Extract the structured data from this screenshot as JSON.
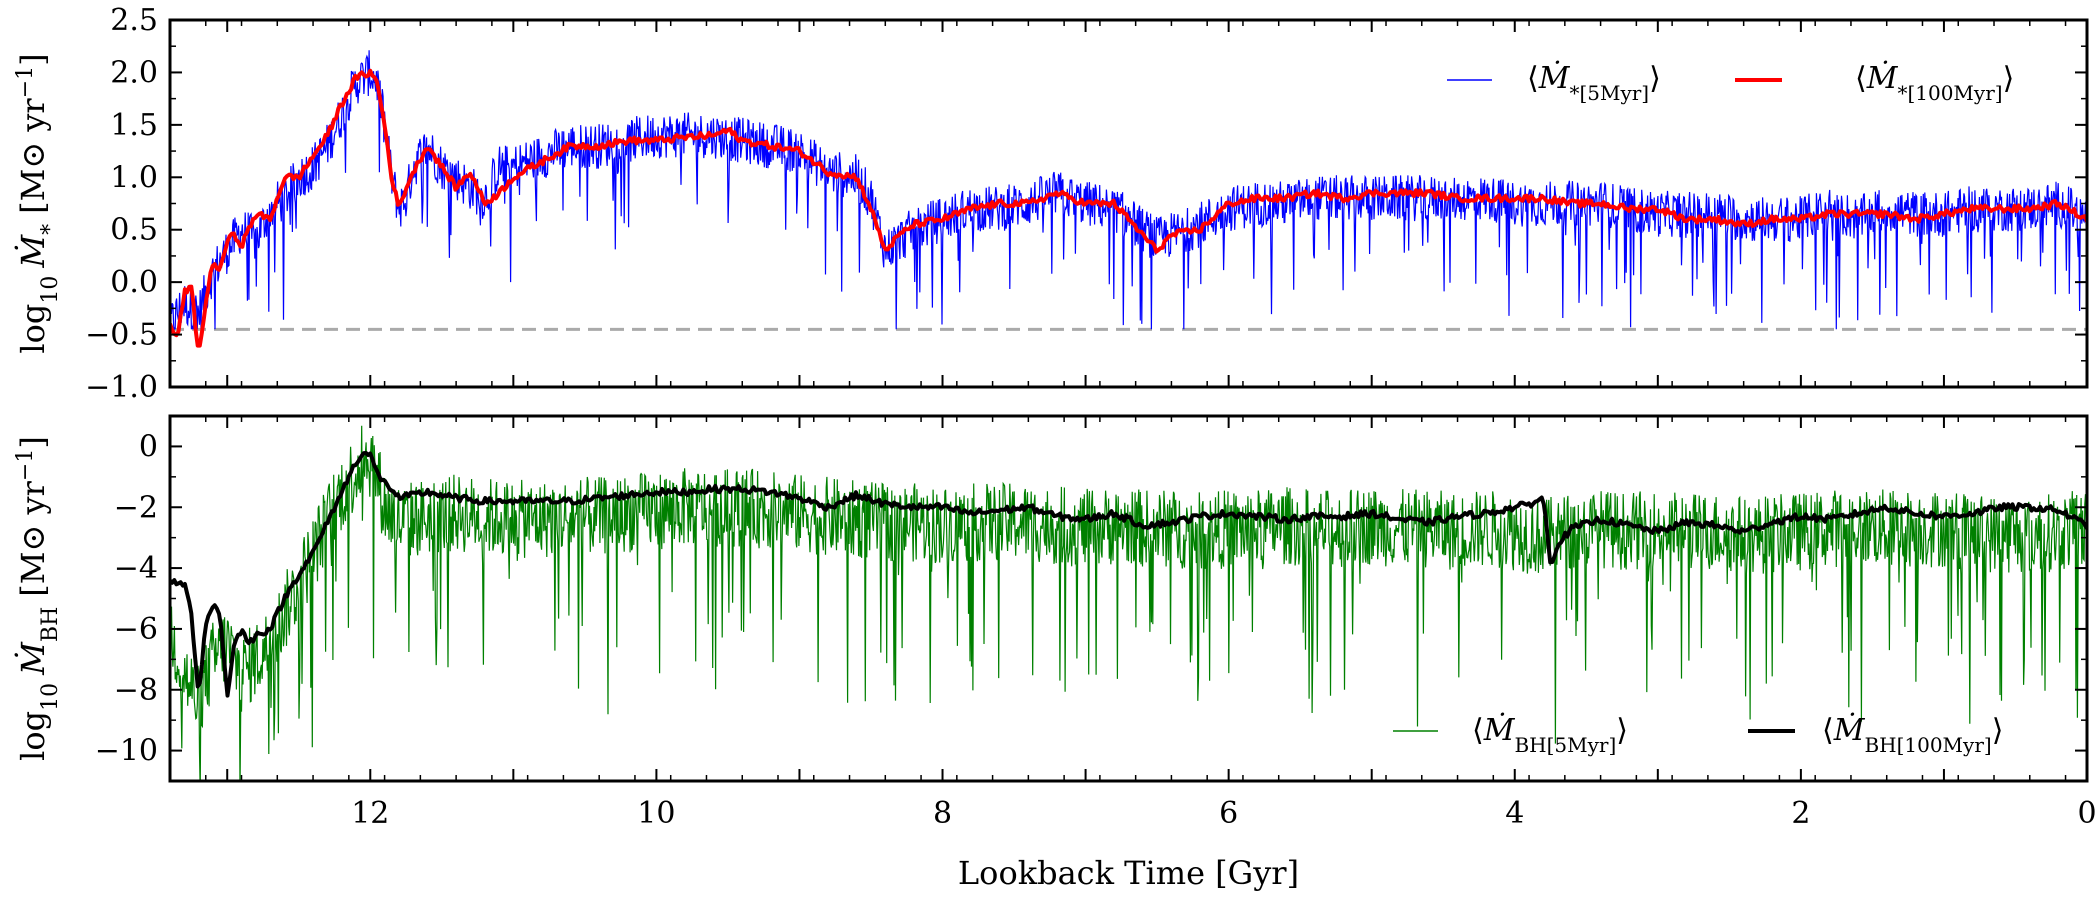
{
  "chart_data": [
    {
      "type": "line",
      "panel": "top",
      "ylabel": "log10 Ṁ* [M⊙ yr⁻¹]",
      "ylabel_parts": {
        "pre": "log",
        "sub": "10",
        "sym": "Ṁ",
        "symsub": "*",
        "unit": "[M⊙ yr",
        "exp": "−1",
        "close": "]"
      },
      "ylim": [
        -1.0,
        2.5
      ],
      "xlim": [
        13.4,
        0
      ],
      "yticks": [
        -1.0,
        -0.5,
        0.0,
        0.5,
        1.0,
        1.5,
        2.0,
        2.5
      ],
      "ytick_labels": [
        "−1.0",
        "−0.5",
        "0.0",
        "0.5",
        "1.0",
        "1.5",
        "2.0",
        "2.5"
      ],
      "floor_line": {
        "y": -0.45,
        "color": "#aaaaaa",
        "style": "dashed"
      },
      "legend_position": "top-right",
      "series": [
        {
          "name": "⟨Ṁ*[5Myr]⟩",
          "label_parts": {
            "base": "Ṁ",
            "sub": "*[5Myr]"
          },
          "color": "#0000ff",
          "kind": "noisy",
          "noise_amplitude": 0.22,
          "floor": -0.45,
          "x": [
            13.4,
            13.3,
            13.2,
            13.1,
            13.0,
            12.9,
            12.8,
            12.7,
            12.6,
            12.5,
            12.4,
            12.3,
            12.2,
            12.1,
            12.0,
            11.95,
            11.9,
            11.85,
            11.8,
            11.75,
            11.7,
            11.6,
            11.5,
            11.4,
            11.3,
            11.2,
            11.1,
            11.0,
            10.8,
            10.6,
            10.4,
            10.2,
            10.0,
            9.8,
            9.6,
            9.4,
            9.2,
            9.0,
            8.8,
            8.6,
            8.5,
            8.4,
            8.3,
            8.2,
            8.0,
            7.8,
            7.6,
            7.4,
            7.2,
            7.0,
            6.8,
            6.6,
            6.5,
            6.4,
            6.2,
            6.0,
            5.8,
            5.6,
            5.4,
            5.2,
            5.0,
            4.8,
            4.6,
            4.4,
            4.2,
            4.0,
            3.8,
            3.6,
            3.4,
            3.2,
            3.0,
            2.8,
            2.6,
            2.4,
            2.2,
            2.0,
            1.8,
            1.6,
            1.4,
            1.2,
            1.0,
            0.8,
            0.6,
            0.4,
            0.2,
            0.0
          ],
          "y": [
            -0.4,
            -0.2,
            -0.3,
            0.1,
            0.3,
            0.5,
            0.4,
            0.7,
            0.8,
            1.0,
            1.1,
            1.3,
            1.6,
            1.9,
            2.0,
            1.9,
            1.5,
            1.0,
            0.7,
            0.8,
            1.1,
            1.3,
            1.1,
            1.0,
            0.9,
            0.8,
            1.1,
            1.1,
            1.2,
            1.3,
            1.3,
            1.35,
            1.4,
            1.4,
            1.4,
            1.35,
            1.3,
            1.25,
            1.05,
            1.0,
            0.8,
            0.3,
            0.4,
            0.5,
            0.6,
            0.7,
            0.7,
            0.75,
            0.85,
            0.75,
            0.7,
            0.5,
            0.4,
            0.45,
            0.55,
            0.7,
            0.75,
            0.75,
            0.8,
            0.8,
            0.8,
            0.8,
            0.8,
            0.8,
            0.8,
            0.75,
            0.75,
            0.75,
            0.75,
            0.7,
            0.65,
            0.65,
            0.65,
            0.6,
            0.6,
            0.6,
            0.7,
            0.6,
            0.7,
            0.65,
            0.65,
            0.7,
            0.7,
            0.7,
            0.75,
            0.6
          ]
        },
        {
          "name": "⟨Ṁ*[100Myr]⟩",
          "label_parts": {
            "base": "Ṁ",
            "sub": "*[100Myr]"
          },
          "color": "#ff0000",
          "kind": "smooth",
          "x": [
            13.4,
            13.35,
            13.3,
            13.25,
            13.2,
            13.15,
            13.1,
            13.05,
            13.0,
            12.95,
            12.9,
            12.8,
            12.7,
            12.6,
            12.5,
            12.4,
            12.3,
            12.2,
            12.1,
            12.0,
            11.95,
            11.9,
            11.85,
            11.8,
            11.75,
            11.7,
            11.6,
            11.5,
            11.4,
            11.3,
            11.2,
            11.1,
            11.0,
            10.8,
            10.6,
            10.4,
            10.2,
            10.0,
            9.8,
            9.6,
            9.5,
            9.4,
            9.2,
            9.0,
            8.8,
            8.6,
            8.5,
            8.4,
            8.3,
            8.2,
            8.0,
            7.8,
            7.6,
            7.4,
            7.2,
            7.0,
            6.8,
            6.6,
            6.5,
            6.4,
            6.2,
            6.0,
            5.8,
            5.6,
            5.4,
            5.2,
            5.0,
            4.8,
            4.6,
            4.4,
            4.2,
            4.0,
            3.8,
            3.6,
            3.4,
            3.2,
            3.0,
            2.8,
            2.6,
            2.4,
            2.2,
            2.0,
            1.8,
            1.6,
            1.4,
            1.2,
            1.0,
            0.8,
            0.6,
            0.4,
            0.2,
            0.0
          ],
          "y": [
            -0.4,
            -0.55,
            -0.1,
            -0.05,
            -0.7,
            -0.2,
            0.2,
            0.1,
            0.4,
            0.45,
            0.35,
            0.65,
            0.6,
            1.0,
            1.0,
            1.2,
            1.4,
            1.7,
            1.95,
            2.0,
            1.9,
            1.5,
            1.0,
            0.7,
            0.9,
            1.05,
            1.3,
            1.1,
            0.9,
            1.05,
            0.75,
            0.85,
            1.0,
            1.15,
            1.3,
            1.3,
            1.35,
            1.35,
            1.38,
            1.4,
            1.45,
            1.35,
            1.3,
            1.25,
            1.05,
            1.0,
            0.7,
            0.3,
            0.45,
            0.55,
            0.6,
            0.7,
            0.75,
            0.75,
            0.85,
            0.75,
            0.75,
            0.45,
            0.3,
            0.45,
            0.5,
            0.75,
            0.8,
            0.8,
            0.85,
            0.8,
            0.85,
            0.85,
            0.85,
            0.8,
            0.8,
            0.8,
            0.8,
            0.75,
            0.75,
            0.7,
            0.7,
            0.6,
            0.6,
            0.55,
            0.6,
            0.6,
            0.65,
            0.65,
            0.65,
            0.6,
            0.65,
            0.7,
            0.7,
            0.7,
            0.75,
            0.6
          ]
        }
      ]
    },
    {
      "type": "line",
      "panel": "bottom",
      "ylabel": "log10 ṀBH [M⊙ yr⁻¹]",
      "ylabel_parts": {
        "pre": "log",
        "sub": "10",
        "sym": "Ṁ",
        "symsub": "BH",
        "unit": "[M⊙ yr",
        "exp": "−1",
        "close": "]"
      },
      "ylim": [
        -11,
        1
      ],
      "xlim": [
        13.4,
        0
      ],
      "yticks": [
        -10,
        -8,
        -6,
        -4,
        -2,
        0
      ],
      "ytick_labels": [
        "−10",
        "−8",
        "−6",
        "−4",
        "−2",
        "0"
      ],
      "xticks": [
        12,
        10,
        8,
        6,
        4,
        2,
        0
      ],
      "xtick_labels": [
        "12",
        "10",
        "8",
        "6",
        "4",
        "2",
        "0"
      ],
      "xlabel": "Lookback Time [Gyr]",
      "legend_position": "bottom-right",
      "series": [
        {
          "name": "⟨ṀBH[5Myr]⟩",
          "label_parts": {
            "base": "Ṁ",
            "sub": "BH[5Myr]"
          },
          "color": "#008000",
          "kind": "noisy",
          "noise_amplitude": 1.3,
          "x": [
            13.4,
            13.3,
            13.2,
            13.1,
            13.0,
            12.9,
            12.8,
            12.7,
            12.6,
            12.5,
            12.4,
            12.3,
            12.2,
            12.1,
            12.05,
            12.0,
            11.95,
            11.9,
            11.8,
            11.6,
            11.4,
            11.2,
            11.0,
            10.8,
            10.6,
            10.4,
            10.2,
            10.0,
            9.8,
            9.6,
            9.4,
            9.2,
            9.0,
            8.8,
            8.6,
            8.4,
            8.2,
            8.0,
            7.8,
            7.6,
            7.4,
            7.2,
            7.0,
            6.8,
            6.6,
            6.4,
            6.2,
            6.0,
            5.8,
            5.6,
            5.4,
            5.2,
            5.0,
            4.8,
            4.6,
            4.4,
            4.2,
            4.0,
            3.8,
            3.6,
            3.4,
            3.2,
            3.0,
            2.8,
            2.6,
            2.4,
            2.2,
            2.0,
            1.8,
            1.6,
            1.4,
            1.2,
            1.0,
            0.8,
            0.6,
            0.4,
            0.2,
            0.0
          ],
          "y": [
            -6.0,
            -7.5,
            -8.5,
            -7.0,
            -6.5,
            -7.5,
            -7.0,
            -6.5,
            -5.5,
            -4.5,
            -3.5,
            -2.5,
            -1.5,
            -0.8,
            -0.5,
            -0.4,
            -1.0,
            -2.0,
            -2.5,
            -2.3,
            -2.2,
            -2.3,
            -2.4,
            -2.4,
            -2.3,
            -2.3,
            -2.2,
            -2.1,
            -2.0,
            -2.0,
            -2.0,
            -2.1,
            -2.2,
            -2.3,
            -2.4,
            -2.5,
            -2.5,
            -2.6,
            -2.5,
            -2.5,
            -2.5,
            -2.6,
            -2.7,
            -2.6,
            -2.7,
            -2.7,
            -2.8,
            -2.7,
            -2.7,
            -2.6,
            -2.7,
            -2.7,
            -2.6,
            -2.7,
            -2.7,
            -2.8,
            -2.7,
            -2.8,
            -3.0,
            -2.8,
            -2.7,
            -2.8,
            -2.7,
            -2.8,
            -2.8,
            -2.9,
            -2.9,
            -2.8,
            -2.7,
            -2.6,
            -2.7,
            -2.7,
            -2.7,
            -2.8,
            -2.9,
            -2.9,
            -2.8,
            -2.7
          ]
        },
        {
          "name": "⟨ṀBH[100Myr]⟩",
          "label_parts": {
            "base": "Ṁ",
            "sub": "BH[100Myr]"
          },
          "color": "#000000",
          "kind": "smooth",
          "x": [
            13.4,
            13.35,
            13.3,
            13.25,
            13.2,
            13.15,
            13.1,
            13.05,
            13.0,
            12.95,
            12.9,
            12.85,
            12.8,
            12.7,
            12.6,
            12.5,
            12.4,
            12.3,
            12.2,
            12.1,
            12.05,
            12.0,
            11.95,
            11.9,
            11.85,
            11.8,
            11.7,
            11.6,
            11.5,
            11.4,
            11.2,
            11.0,
            10.8,
            10.6,
            10.4,
            10.2,
            10.0,
            9.8,
            9.6,
            9.4,
            9.2,
            9.0,
            8.8,
            8.6,
            8.4,
            8.2,
            8.0,
            7.8,
            7.6,
            7.4,
            7.2,
            7.0,
            6.8,
            6.6,
            6.4,
            6.2,
            6.0,
            5.8,
            5.6,
            5.4,
            5.2,
            5.0,
            4.8,
            4.6,
            4.4,
            4.2,
            4.0,
            3.9,
            3.8,
            3.75,
            3.7,
            3.6,
            3.4,
            3.2,
            3.0,
            2.8,
            2.6,
            2.4,
            2.2,
            2.0,
            1.8,
            1.6,
            1.4,
            1.2,
            1.0,
            0.8,
            0.6,
            0.4,
            0.2,
            0.0
          ],
          "y": [
            -4.5,
            -4.5,
            -4.5,
            -5.5,
            -8.2,
            -5.8,
            -5.2,
            -5.5,
            -8.2,
            -6.5,
            -6.0,
            -6.5,
            -6.2,
            -6.0,
            -5.0,
            -4.2,
            -3.5,
            -2.5,
            -1.5,
            -0.5,
            -0.2,
            -0.3,
            -0.9,
            -1.2,
            -1.4,
            -1.7,
            -1.6,
            -1.5,
            -1.6,
            -1.7,
            -1.8,
            -1.8,
            -1.8,
            -1.8,
            -1.7,
            -1.6,
            -1.5,
            -1.5,
            -1.4,
            -1.4,
            -1.5,
            -1.7,
            -2.0,
            -1.6,
            -1.9,
            -2.0,
            -2.0,
            -2.2,
            -2.1,
            -2.0,
            -2.3,
            -2.4,
            -2.2,
            -2.6,
            -2.5,
            -2.3,
            -2.2,
            -2.3,
            -2.4,
            -2.3,
            -2.3,
            -2.2,
            -2.4,
            -2.5,
            -2.3,
            -2.2,
            -2.0,
            -1.9,
            -1.7,
            -3.9,
            -3.2,
            -2.7,
            -2.4,
            -2.6,
            -2.8,
            -2.5,
            -2.6,
            -2.8,
            -2.5,
            -2.3,
            -2.4,
            -2.2,
            -2.0,
            -2.2,
            -2.3,
            -2.2,
            -2.0,
            -2.0,
            -2.1,
            -2.6
          ]
        }
      ]
    }
  ]
}
